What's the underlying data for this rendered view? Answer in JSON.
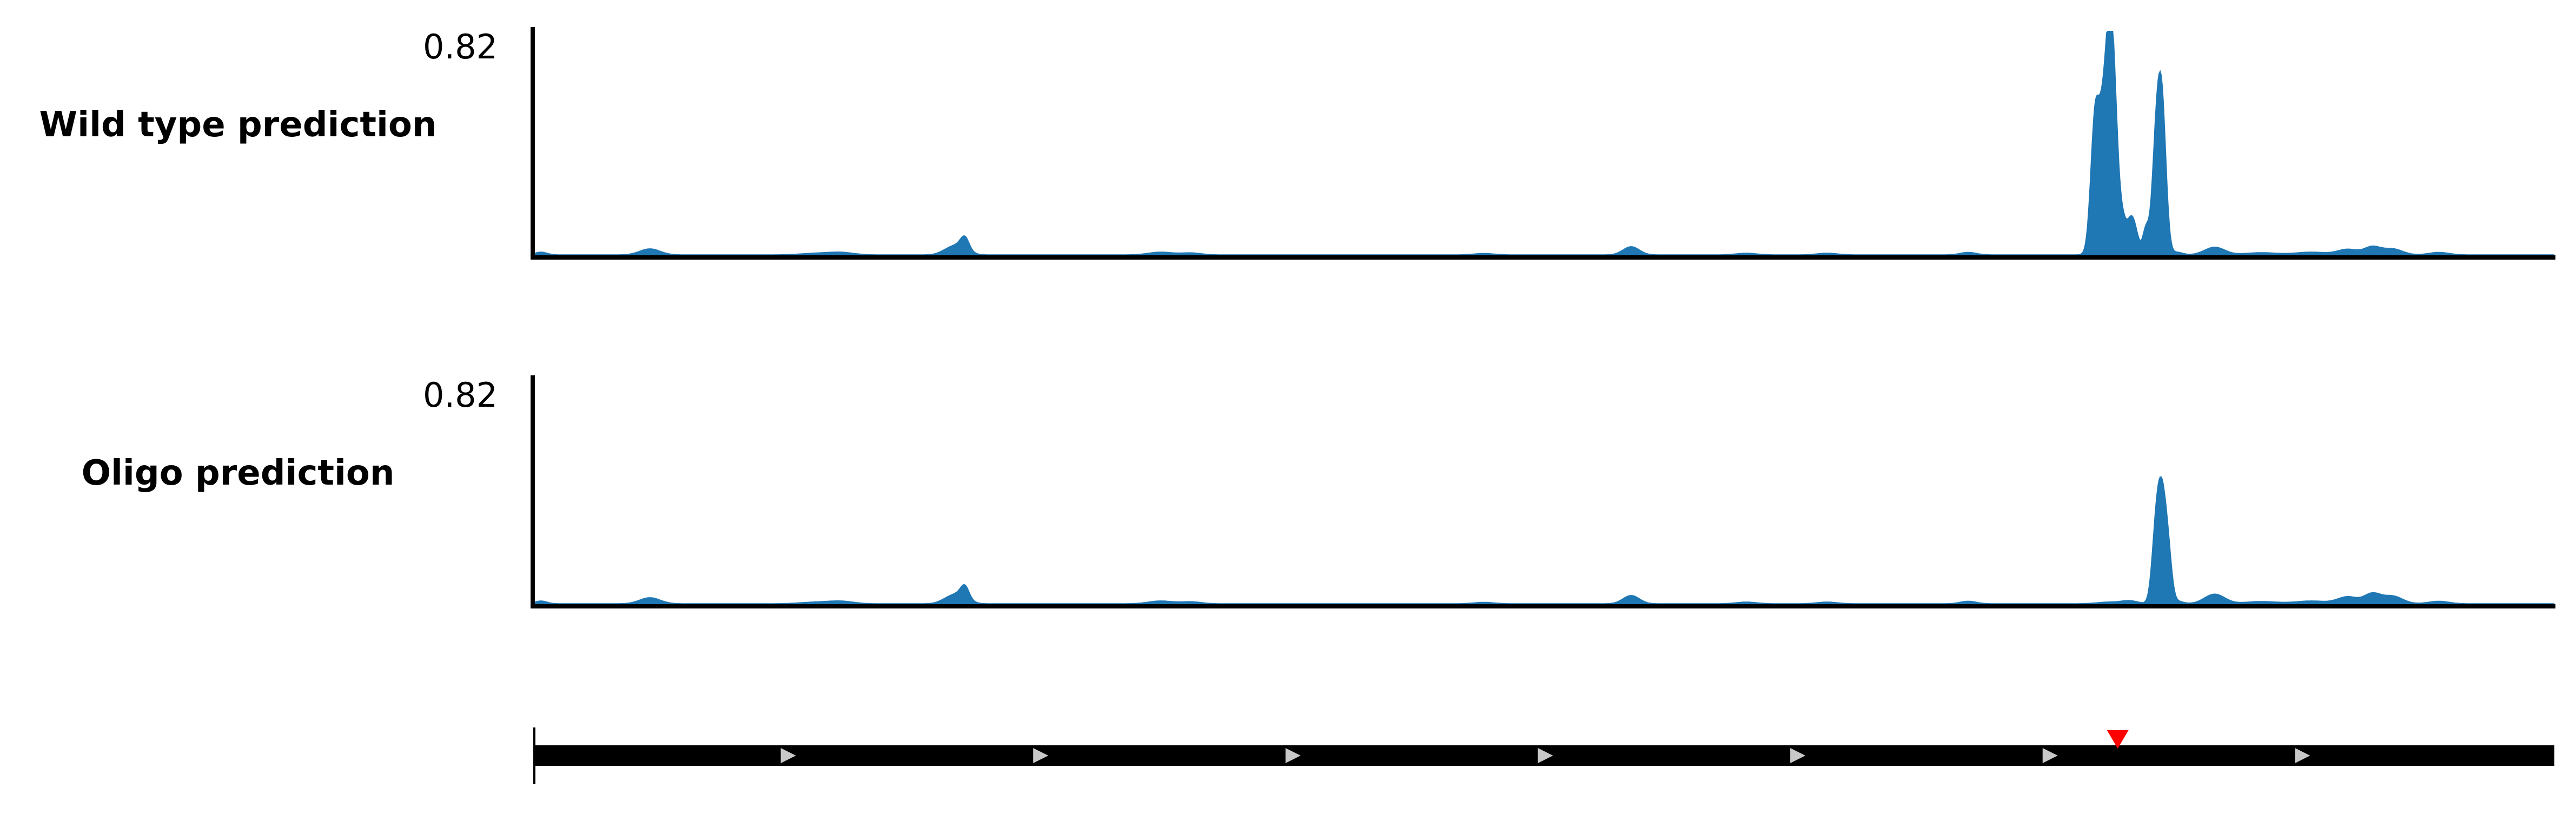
{
  "chart_data": [
    {
      "type": "area",
      "track_label": "Wild type prediction",
      "ymax_label": "0.82",
      "ylim": [
        0,
        0.82
      ],
      "xlim": [
        0,
        1000
      ],
      "color": "#1f77b4",
      "peaks": [
        {
          "center": 3,
          "width": 3,
          "height": 0.01
        },
        {
          "center": 57,
          "width": 5,
          "height": 0.022
        },
        {
          "center": 140,
          "width": 8,
          "height": 0.006
        },
        {
          "center": 152,
          "width": 6,
          "height": 0.008
        },
        {
          "center": 205,
          "width": 4,
          "height": 0.018
        },
        {
          "center": 211,
          "width": 4,
          "height": 0.03
        },
        {
          "center": 213,
          "width": 2,
          "height": 0.04
        },
        {
          "center": 310,
          "width": 6,
          "height": 0.01
        },
        {
          "center": 325,
          "width": 5,
          "height": 0.007
        },
        {
          "center": 470,
          "width": 5,
          "height": 0.005
        },
        {
          "center": 543,
          "width": 4,
          "height": 0.03
        },
        {
          "center": 600,
          "width": 5,
          "height": 0.006
        },
        {
          "center": 640,
          "width": 5,
          "height": 0.006
        },
        {
          "center": 710,
          "width": 4,
          "height": 0.009
        },
        {
          "center": 790,
          "width": 4,
          "height": 0.01
        },
        {
          "center": 813,
          "width": 3,
          "height": 0.01
        },
        {
          "center": 780,
          "width": 6,
          "height": 0.006
        },
        {
          "center": 773,
          "width": 2.2,
          "height": 0.53
        },
        {
          "center": 776,
          "width": 1.5,
          "height": 0.13
        },
        {
          "center": 779,
          "width": 2.2,
          "height": 0.66
        },
        {
          "center": 782,
          "width": 2.0,
          "height": 0.5
        },
        {
          "center": 786,
          "width": 1.8,
          "height": 0.1
        },
        {
          "center": 791,
          "width": 2.5,
          "height": 0.13
        },
        {
          "center": 806,
          "width": 2,
          "height": 0.5
        },
        {
          "center": 803,
          "width": 2,
          "height": 0.38
        },
        {
          "center": 798,
          "width": 1.5,
          "height": 0.09
        },
        {
          "center": 832,
          "width": 5,
          "height": 0.028
        },
        {
          "center": 855,
          "width": 8,
          "height": 0.008
        },
        {
          "center": 880,
          "width": 8,
          "height": 0.01
        },
        {
          "center": 898,
          "width": 5,
          "height": 0.02
        },
        {
          "center": 910,
          "width": 4,
          "height": 0.028
        },
        {
          "center": 920,
          "width": 5,
          "height": 0.022
        },
        {
          "center": 943,
          "width": 5,
          "height": 0.009
        }
      ]
    },
    {
      "type": "area",
      "track_label": "Oligo prediction",
      "ymax_label": "0.82",
      "ylim": [
        0,
        0.82
      ],
      "xlim": [
        0,
        1000
      ],
      "color": "#1f77b4",
      "peaks": [
        {
          "center": 3,
          "width": 3,
          "height": 0.01
        },
        {
          "center": 57,
          "width": 5,
          "height": 0.022
        },
        {
          "center": 140,
          "width": 8,
          "height": 0.006
        },
        {
          "center": 152,
          "width": 6,
          "height": 0.008
        },
        {
          "center": 205,
          "width": 4,
          "height": 0.018
        },
        {
          "center": 211,
          "width": 4,
          "height": 0.03
        },
        {
          "center": 213,
          "width": 2,
          "height": 0.04
        },
        {
          "center": 310,
          "width": 6,
          "height": 0.01
        },
        {
          "center": 325,
          "width": 5,
          "height": 0.007
        },
        {
          "center": 470,
          "width": 5,
          "height": 0.005
        },
        {
          "center": 543,
          "width": 4,
          "height": 0.03
        },
        {
          "center": 600,
          "width": 5,
          "height": 0.006
        },
        {
          "center": 640,
          "width": 5,
          "height": 0.006
        },
        {
          "center": 710,
          "width": 4,
          "height": 0.009
        },
        {
          "center": 790,
          "width": 4,
          "height": 0.01
        },
        {
          "center": 813,
          "width": 3,
          "height": 0.01
        },
        {
          "center": 780,
          "width": 6,
          "height": 0.006
        },
        {
          "center": 806,
          "width": 2,
          "height": 0.33
        },
        {
          "center": 803,
          "width": 2,
          "height": 0.26
        },
        {
          "center": 809,
          "width": 1.8,
          "height": 0.16
        },
        {
          "center": 832,
          "width": 5,
          "height": 0.035
        },
        {
          "center": 855,
          "width": 8,
          "height": 0.008
        },
        {
          "center": 880,
          "width": 8,
          "height": 0.01
        },
        {
          "center": 898,
          "width": 5,
          "height": 0.025
        },
        {
          "center": 910,
          "width": 4,
          "height": 0.035
        },
        {
          "center": 920,
          "width": 5,
          "height": 0.028
        },
        {
          "center": 943,
          "width": 5,
          "height": 0.009
        }
      ]
    }
  ],
  "gene_track": {
    "xlim": [
      0,
      1000
    ],
    "strand_arrows": [
      125,
      250,
      375,
      500,
      625,
      750,
      875
    ],
    "marker": {
      "position": 784,
      "color": "#ff0000"
    },
    "bar_color": "#000000",
    "arrow_color": "#c8c8c8"
  }
}
